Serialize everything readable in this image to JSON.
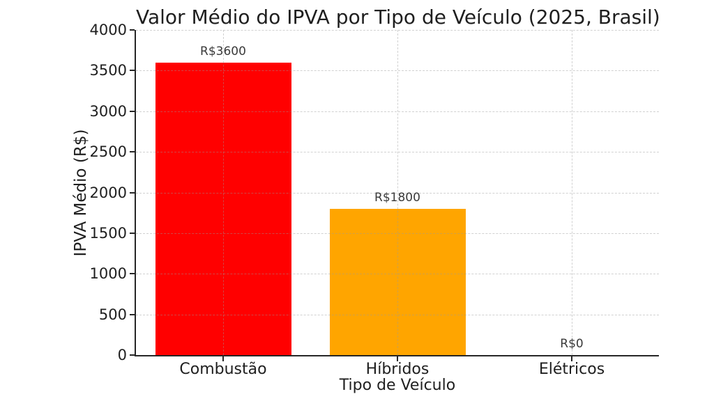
{
  "figure": {
    "background_color": "#ffffff",
    "text_color": "#1f1f1f"
  },
  "chart_data": {
    "type": "bar",
    "title": "Valor Médio do IPVA por Tipo de Veículo (2025, Brasil)",
    "xlabel": "Tipo de Veículo",
    "ylabel": "IPVA Médio (R$)",
    "categories": [
      "Combustão",
      "Híbridos",
      "Elétricos"
    ],
    "values": [
      3600,
      1800,
      0
    ],
    "value_labels": [
      "R$3600",
      "R$1800",
      "R$0"
    ],
    "bar_colors": [
      "#ff0000",
      "#ffa500",
      "none"
    ],
    "ylim": [
      0,
      4000
    ],
    "yticks": [
      0,
      500,
      1000,
      1500,
      2000,
      2500,
      3000,
      3500,
      4000
    ],
    "grid": true,
    "grid_style": "dashed",
    "legend_position": "none",
    "bar_width_fraction": 0.78
  }
}
